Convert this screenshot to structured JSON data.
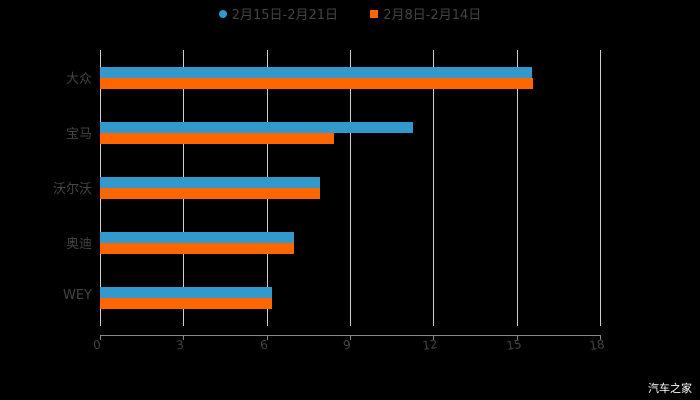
{
  "chart_data": {
    "type": "bar",
    "orientation": "horizontal",
    "title": "",
    "xlabel": "",
    "ylabel": "",
    "categories": [
      "大众",
      "宝马",
      "沃尔沃",
      "奥迪",
      "WEY"
    ],
    "series": [
      {
        "name": "2月15日-2月21日",
        "color": "#3399CC",
        "values": [
          15.55,
          11.27,
          7.92,
          6.98,
          6.19
        ]
      },
      {
        "name": "2月8日-2月14日",
        "color": "#FF6600",
        "values": [
          15.6,
          8.42,
          7.92,
          6.98,
          6.19
        ]
      }
    ],
    "xlim": [
      0,
      18
    ],
    "xticks": [
      "0",
      "3",
      "6",
      "9",
      "12",
      "15",
      "18"
    ],
    "grid": true,
    "legend_position": "top"
  },
  "legend": {
    "series1": "2月15日-2月21日",
    "series2": "2月8日-2月14日"
  },
  "watermark": "汽车之家"
}
